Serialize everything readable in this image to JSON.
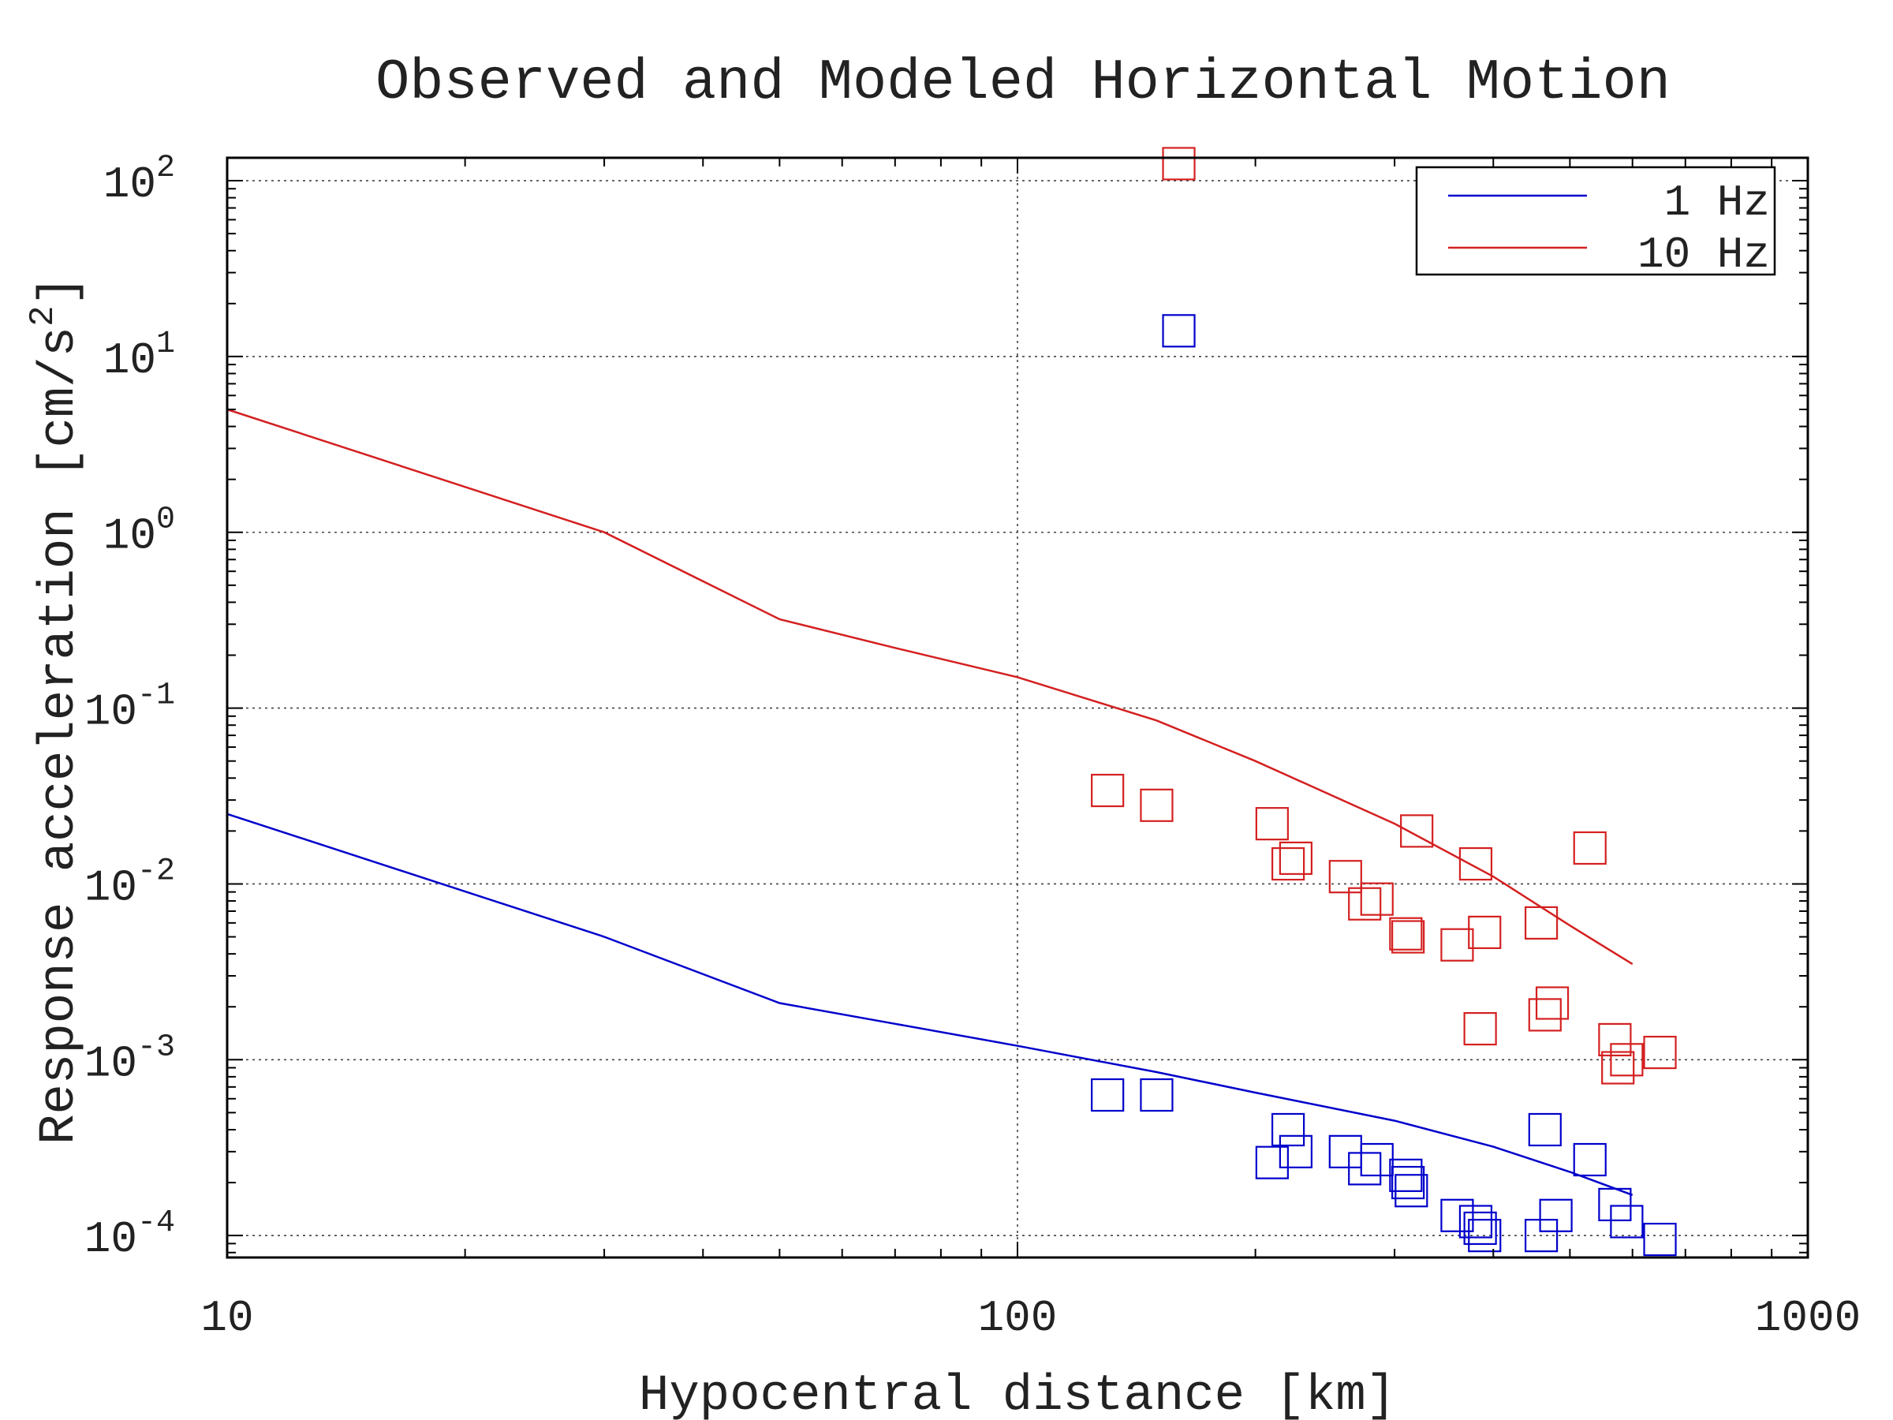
{
  "chart_data": {
    "type": "line",
    "title": "Observed and Modeled Horizontal Motion",
    "xlabel": "Hypocentral distance [km]",
    "ylabel_main": "Response acceleration [cm/s",
    "ylabel_sup": "2",
    "ylabel_end": "]",
    "xscale": "log",
    "yscale": "log",
    "xlim": [
      10,
      1000
    ],
    "ylim": [
      7.5e-05,
      135
    ],
    "grid": true,
    "legend_position": "top-right",
    "x_ticks": [
      {
        "value": 10,
        "label": "10"
      },
      {
        "value": 100,
        "label": "100"
      },
      {
        "value": 1000,
        "label": "1000"
      }
    ],
    "y_ticks": [
      {
        "value": 0.0001,
        "base": "10",
        "exp": "-4"
      },
      {
        "value": 0.001,
        "base": "10",
        "exp": "-3"
      },
      {
        "value": 0.01,
        "base": "10",
        "exp": "-2"
      },
      {
        "value": 0.1,
        "base": "10",
        "exp": "-1"
      },
      {
        "value": 1,
        "base": "10",
        "exp": "0"
      },
      {
        "value": 10,
        "base": "10",
        "exp": "1"
      },
      {
        "value": 100,
        "base": "10",
        "exp": "2"
      }
    ],
    "series": [
      {
        "name": "1 Hz",
        "color": "#0000cc",
        "line": {
          "x": [
            10,
            30,
            50,
            70,
            100,
            150,
            200,
            300,
            400,
            500,
            600
          ],
          "y": [
            0.025,
            0.005,
            0.0021,
            0.0016,
            0.0012,
            0.00085,
            0.00065,
            0.00045,
            0.00032,
            0.00023,
            0.00017
          ]
        },
        "observed": {
          "x": [
            130,
            150,
            160,
            210,
            220,
            225,
            260,
            275,
            285,
            310,
            312,
            315,
            360,
            380,
            385,
            390,
            460,
            465,
            480,
            530,
            570,
            590,
            650
          ],
          "y": [
            0.00063,
            0.00063,
            14,
            0.00026,
            0.0004,
            0.0003,
            0.0003,
            0.00024,
            0.00027,
            0.00022,
            0.0002,
            0.00018,
            0.00013,
            0.00012,
            0.00011,
            0.0001,
            0.0001,
            0.0004,
            0.00013,
            0.00027,
            0.00015,
            0.00012,
            9.5e-05
          ]
        }
      },
      {
        "name": "10 Hz",
        "color": "#d42020",
        "line": {
          "x": [
            10,
            30,
            50,
            70,
            100,
            150,
            200,
            300,
            400,
            500,
            600
          ],
          "y": [
            5,
            1,
            0.32,
            0.22,
            0.15,
            0.085,
            0.05,
            0.022,
            0.011,
            0.0058,
            0.0035
          ]
        },
        "observed": {
          "x": [
            130,
            150,
            160,
            210,
            220,
            225,
            260,
            275,
            285,
            310,
            312,
            320,
            360,
            380,
            385,
            390,
            460,
            465,
            475,
            530,
            570,
            575,
            590,
            650
          ],
          "y": [
            0.034,
            0.028,
            125,
            0.022,
            0.013,
            0.014,
            0.011,
            0.0077,
            0.0082,
            0.0052,
            0.005,
            0.02,
            0.0045,
            0.013,
            0.0015,
            0.0053,
            0.006,
            0.0018,
            0.0021,
            0.016,
            0.0013,
            0.0009,
            0.001,
            0.0011
          ]
        }
      }
    ]
  }
}
